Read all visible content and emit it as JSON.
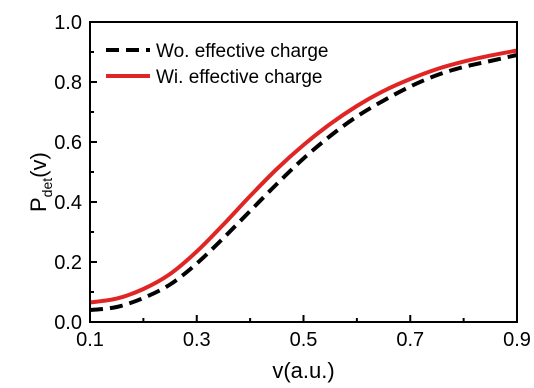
{
  "chart_data": {
    "type": "line",
    "xlabel": "v(a.u.)",
    "ylabel_main": "P",
    "ylabel_sub": "det",
    "ylabel_tail": "(v)",
    "xlim": [
      0.1,
      0.9
    ],
    "ylim": [
      0.0,
      1.0
    ],
    "xticks": [
      "0.1",
      "0.3",
      "0.5",
      "0.7",
      "0.9"
    ],
    "yticks": [
      "0.0",
      "0.2",
      "0.4",
      "0.6",
      "0.8",
      "1.0"
    ],
    "grid": false,
    "legend_position": "top-left",
    "series": [
      {
        "name": "Wo. effective charge",
        "color": "#000000",
        "style": "dashed",
        "x": [
          0.1,
          0.15,
          0.2,
          0.25,
          0.3,
          0.35,
          0.4,
          0.45,
          0.5,
          0.55,
          0.6,
          0.65,
          0.7,
          0.75,
          0.8,
          0.85,
          0.9
        ],
        "y": [
          0.04,
          0.05,
          0.08,
          0.125,
          0.195,
          0.28,
          0.37,
          0.46,
          0.545,
          0.62,
          0.685,
          0.738,
          0.785,
          0.823,
          0.85,
          0.87,
          0.89
        ]
      },
      {
        "name": "Wi. effective charge",
        "color": "#e02525",
        "style": "solid",
        "x": [
          0.1,
          0.15,
          0.2,
          0.25,
          0.3,
          0.35,
          0.4,
          0.45,
          0.5,
          0.55,
          0.6,
          0.65,
          0.7,
          0.75,
          0.8,
          0.85,
          0.9
        ],
        "y": [
          0.065,
          0.078,
          0.11,
          0.16,
          0.235,
          0.325,
          0.42,
          0.51,
          0.59,
          0.66,
          0.72,
          0.77,
          0.81,
          0.843,
          0.868,
          0.888,
          0.905
        ]
      }
    ]
  }
}
